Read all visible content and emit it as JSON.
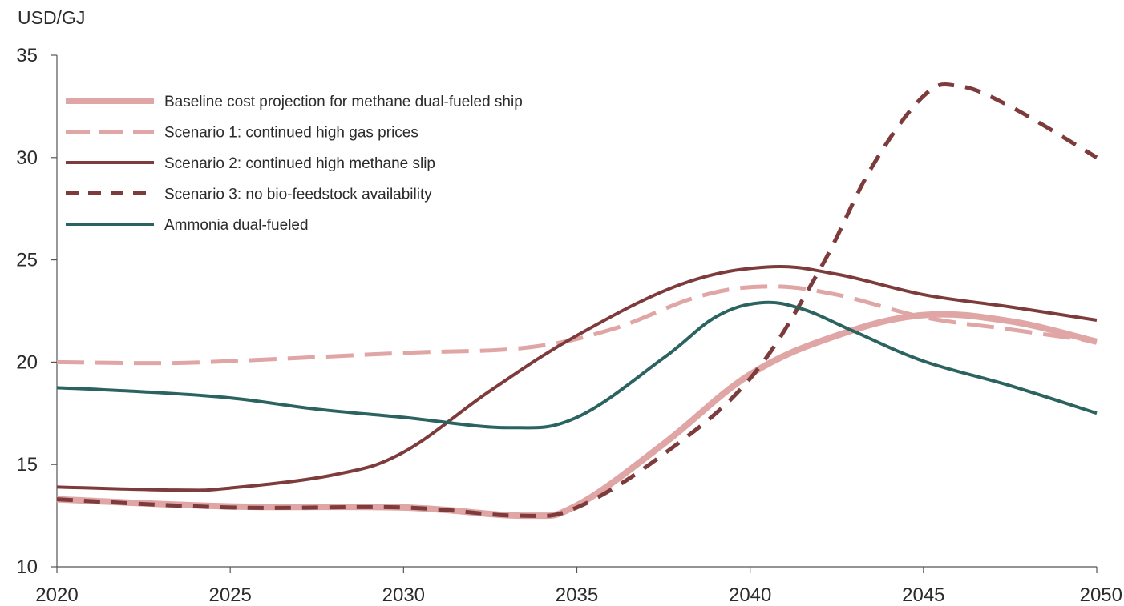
{
  "chart_data": {
    "type": "line",
    "title": "",
    "xlabel": "",
    "ylabel": "USD/GJ",
    "xlim": [
      2020,
      2050
    ],
    "ylim": [
      10,
      35
    ],
    "x_ticks": [
      2020,
      2025,
      2030,
      2035,
      2040,
      2045,
      2050
    ],
    "y_ticks": [
      10,
      15,
      20,
      25,
      30,
      35
    ],
    "grid": false,
    "legend_position": "top-left",
    "series": [
      {
        "name": "Baseline cost projection for methane dual-fueled ship",
        "color": "#e0a5a5",
        "style": "solid-thick",
        "points": [
          [
            2020,
            13.3
          ],
          [
            2025,
            12.95
          ],
          [
            2030,
            12.9
          ],
          [
            2033.5,
            12.5
          ],
          [
            2035,
            13.0
          ],
          [
            2037.5,
            16.0
          ],
          [
            2040,
            19.4
          ],
          [
            2042.5,
            21.3
          ],
          [
            2045,
            22.3
          ],
          [
            2047.5,
            22.0
          ],
          [
            2050,
            21.0
          ]
        ]
      },
      {
        "name": "Scenario 1: continued high gas prices",
        "color": "#e0a5a5",
        "style": "dashed",
        "points": [
          [
            2020,
            20.0
          ],
          [
            2023,
            19.95
          ],
          [
            2025,
            20.05
          ],
          [
            2030,
            20.45
          ],
          [
            2033.5,
            20.7
          ],
          [
            2036,
            21.6
          ],
          [
            2038.5,
            23.2
          ],
          [
            2040.5,
            23.7
          ],
          [
            2042.5,
            23.3
          ],
          [
            2045,
            22.2
          ],
          [
            2047.5,
            21.6
          ],
          [
            2050,
            21.0
          ]
        ]
      },
      {
        "name": "Scenario 2: continued high methane slip",
        "color": "#7d3b3b",
        "style": "solid",
        "points": [
          [
            2020,
            13.9
          ],
          [
            2023.5,
            13.75
          ],
          [
            2025,
            13.85
          ],
          [
            2028,
            14.5
          ],
          [
            2030,
            15.6
          ],
          [
            2032.5,
            18.6
          ],
          [
            2035,
            21.3
          ],
          [
            2038,
            23.8
          ],
          [
            2040.5,
            24.65
          ],
          [
            2042.5,
            24.3
          ],
          [
            2045,
            23.3
          ],
          [
            2047.5,
            22.7
          ],
          [
            2050,
            22.05
          ]
        ]
      },
      {
        "name": "Scenario 3: no bio-feedstock availability",
        "color": "#7d3b3b",
        "style": "dashed",
        "points": [
          [
            2020,
            13.3
          ],
          [
            2025,
            12.9
          ],
          [
            2030,
            12.9
          ],
          [
            2033.3,
            12.5
          ],
          [
            2035,
            12.9
          ],
          [
            2037.5,
            15.5
          ],
          [
            2040,
            19.2
          ],
          [
            2042,
            24.5
          ],
          [
            2043.5,
            29.5
          ],
          [
            2045,
            33.0
          ],
          [
            2046,
            33.5
          ],
          [
            2047.5,
            32.5
          ],
          [
            2050,
            30.0
          ]
        ]
      },
      {
        "name": "Ammonia dual-fueled",
        "color": "#2b6360",
        "style": "solid",
        "points": [
          [
            2020,
            18.75
          ],
          [
            2022.5,
            18.55
          ],
          [
            2025,
            18.25
          ],
          [
            2027.5,
            17.7
          ],
          [
            2030,
            17.3
          ],
          [
            2033,
            16.8
          ],
          [
            2035,
            17.3
          ],
          [
            2037.5,
            20.2
          ],
          [
            2039,
            22.2
          ],
          [
            2040.3,
            22.9
          ],
          [
            2041.5,
            22.6
          ],
          [
            2043,
            21.5
          ],
          [
            2045,
            20.05
          ],
          [
            2047.5,
            18.85
          ],
          [
            2050,
            17.5
          ]
        ]
      }
    ]
  }
}
